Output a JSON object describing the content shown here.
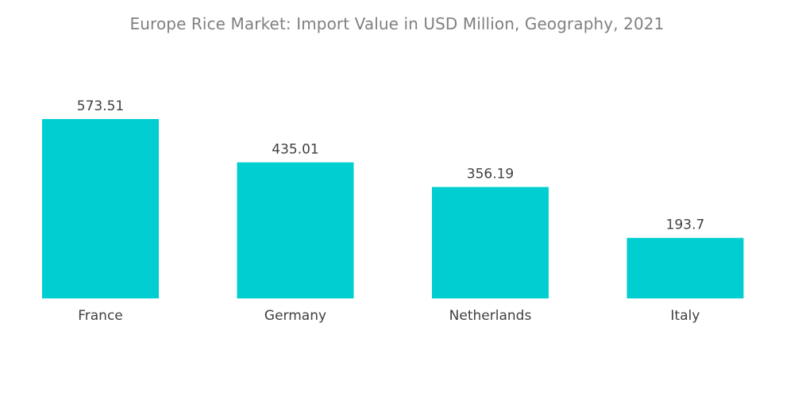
{
  "chart_data": {
    "type": "bar",
    "title": "Europe Rice Market: Import Value in USD Million, Geography, 2021",
    "categories": [
      "France",
      "Germany",
      "Netherlands",
      "Italy"
    ],
    "values": [
      573.51,
      435.01,
      356.19,
      193.7
    ],
    "value_labels": [
      "573.51",
      "435.01",
      "356.19",
      "193.7"
    ],
    "xlabel": "",
    "ylabel": "",
    "ylim": [
      0,
      600
    ],
    "grid": false,
    "legend": "none",
    "bar_color": "#00CED1"
  }
}
